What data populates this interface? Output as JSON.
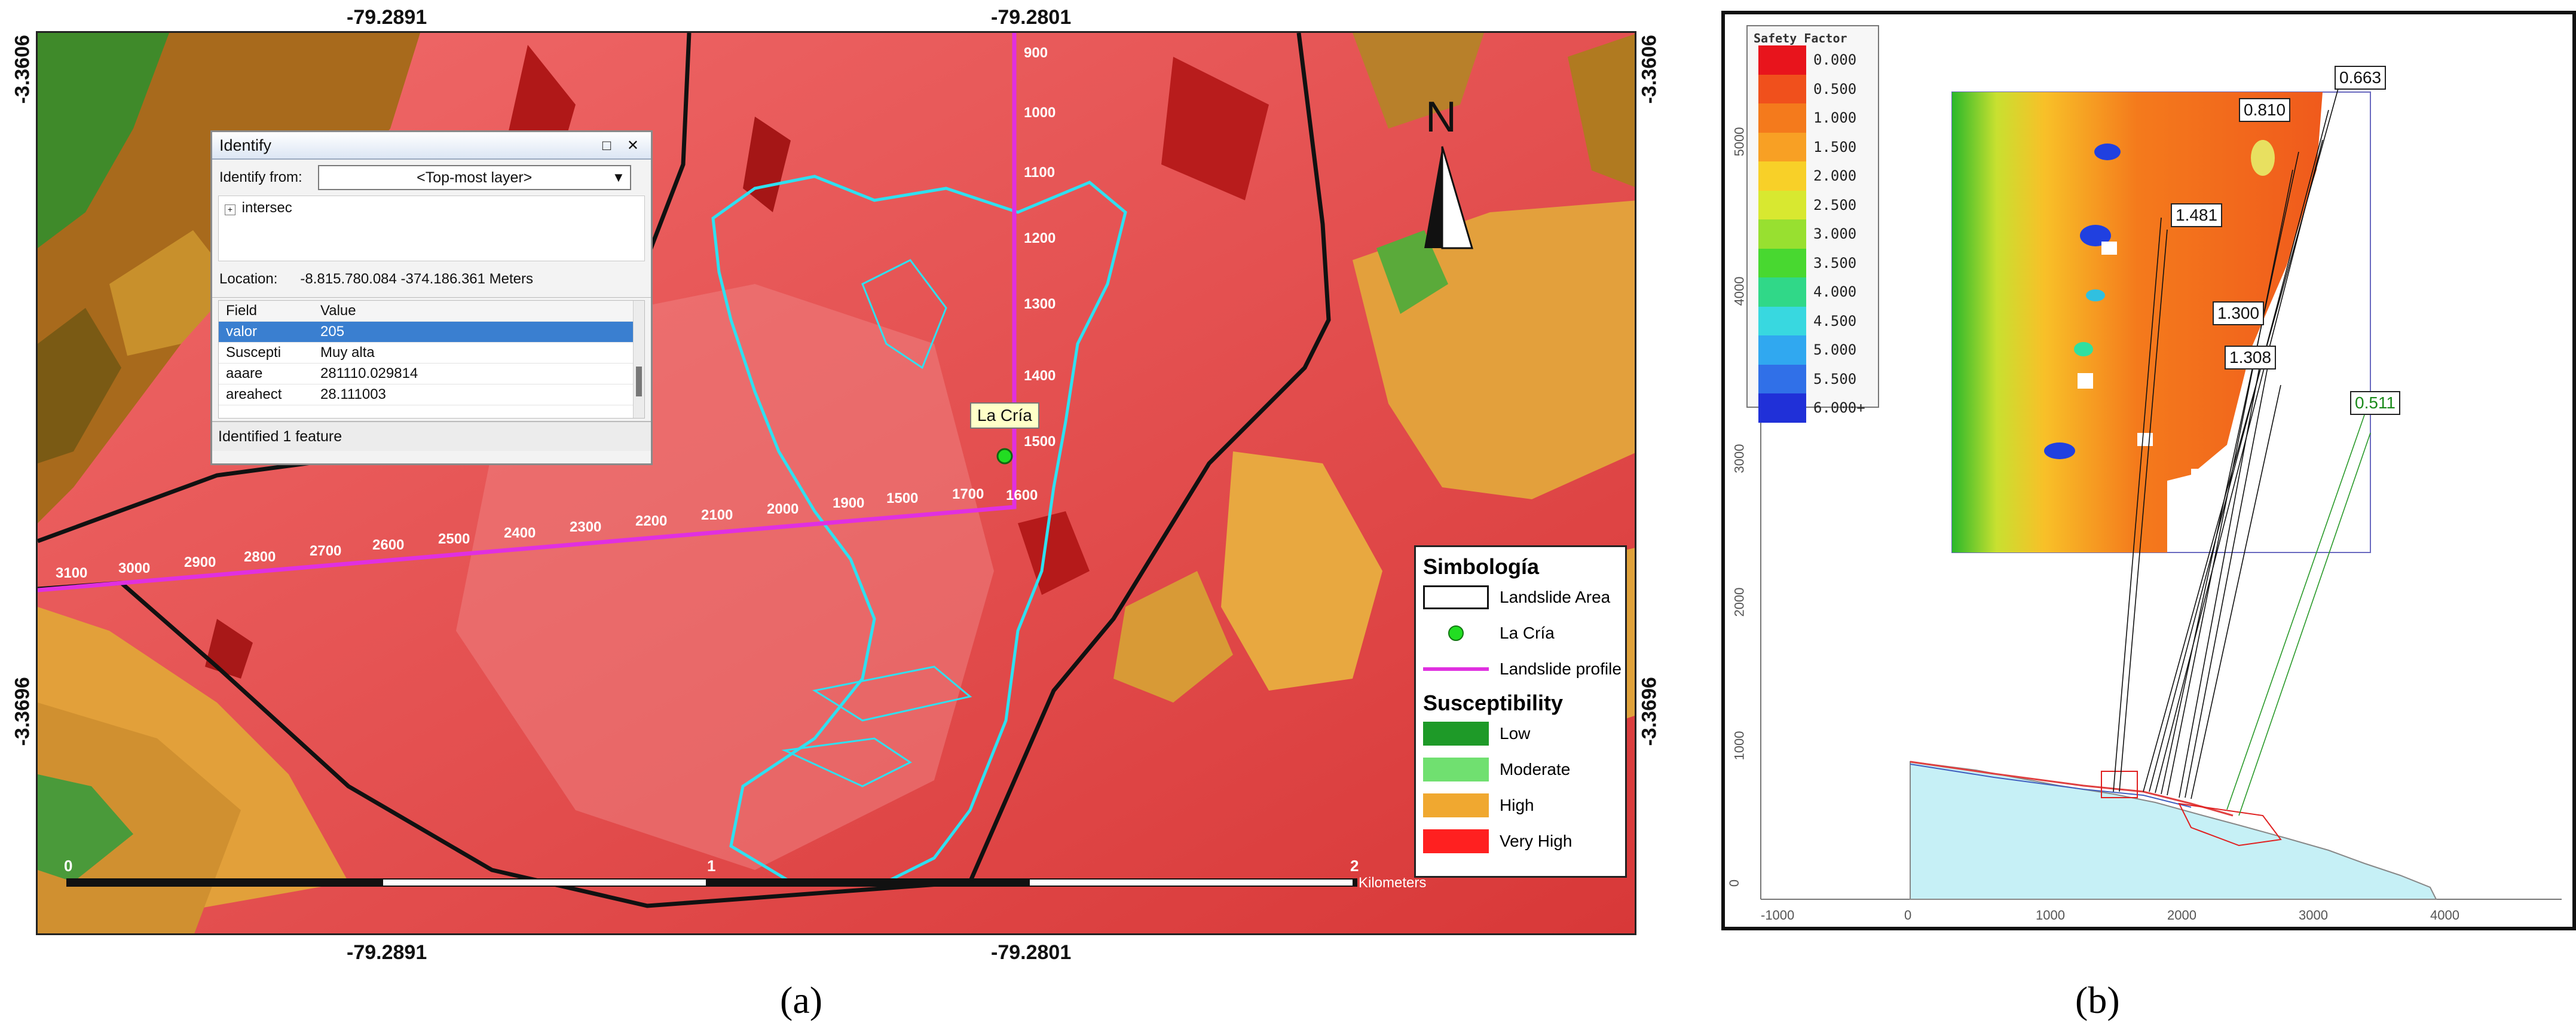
{
  "panel_a": {
    "label": "(a)",
    "coords": {
      "top_left": "-79.2891",
      "top_right": "-79.2801",
      "bottom_left": "-79.2891",
      "bottom_right": "-79.2801",
      "left_top": "-3.3606",
      "left_bottom": "-3.3696",
      "right_top": "-3.3606",
      "right_bottom": "-3.3696"
    },
    "north_label": "N",
    "point_label": "La Cría",
    "profile_ticks_vertical": [
      "900",
      "1000",
      "1100",
      "1200",
      "1300",
      "1400",
      "1500",
      "1600"
    ],
    "profile_ticks_horizontal": [
      "3100",
      "3000",
      "2900",
      "2800",
      "2700",
      "2600",
      "2500",
      "2400",
      "2300",
      "2200",
      "2100",
      "2000",
      "1900",
      "1500",
      "1700"
    ],
    "scale": {
      "t0": "0",
      "t1": "1",
      "t2": "2",
      "unit": "Kilometers"
    },
    "identify": {
      "title": "Identify",
      "controls": "□ ✕",
      "from_label": "Identify from:",
      "from_value": "<Top-most layer>",
      "tree_item": "intersec",
      "location_label": "Location:",
      "location_value": "-8.815.780.084  -374.186.361 Meters",
      "col_field": "Field",
      "col_value": "Value",
      "rows": [
        {
          "field": "valor",
          "value": "205"
        },
        {
          "field": "Suscepti",
          "value": "Muy alta"
        },
        {
          "field": "aaare",
          "value": "281110.029814"
        },
        {
          "field": "areahect",
          "value": "28.111003"
        }
      ],
      "status": "Identified 1 feature"
    },
    "legend": {
      "title": "Simbología",
      "items": [
        {
          "label": "Landslide Area"
        },
        {
          "label": "La Cría"
        },
        {
          "label": "Landslide profile"
        }
      ],
      "subtitle": "Susceptibility",
      "classes": [
        {
          "label": "Low",
          "color": "#1e9a28"
        },
        {
          "label": "Moderate",
          "color": "#70e070"
        },
        {
          "label": "High",
          "color": "#f0a830"
        },
        {
          "label": "Very High",
          "color": "#ff2020"
        }
      ]
    }
  },
  "panel_b": {
    "label": "(b)",
    "legend_title": "Safety Factor",
    "legend_values": [
      "0.000",
      "0.500",
      "1.000",
      "1.500",
      "2.000",
      "2.500",
      "3.000",
      "3.500",
      "4.000",
      "4.500",
      "5.000",
      "5.500",
      "6.000+"
    ],
    "legend_colors": [
      "#e8141c",
      "#f0501c",
      "#f47a1c",
      "#f8a024",
      "#f8d028",
      "#d8e830",
      "#98e030",
      "#48d830",
      "#30d888",
      "#38d8e0",
      "#30a8f0",
      "#3070e8",
      "#2030d8"
    ],
    "factor_labels": [
      "0.663",
      "0.810",
      "1.481",
      "1.300",
      "1.308",
      "0.511"
    ],
    "y_ticks": [
      "0",
      "1000",
      "2000",
      "3000",
      "4000",
      "5000"
    ],
    "x_ticks": [
      "-1000",
      "0",
      "1000",
      "2000",
      "3000",
      "4000"
    ]
  }
}
